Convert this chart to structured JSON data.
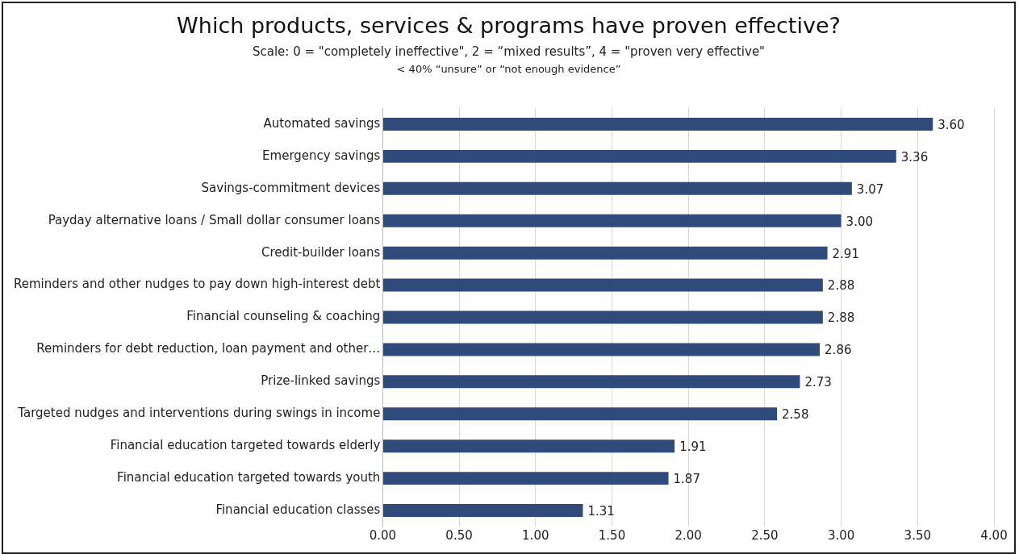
{
  "chart_data": {
    "type": "bar",
    "orientation": "horizontal",
    "title": "Which products, services & programs have proven effective?",
    "subtitle": "Scale: 0 = \"completely ineffective\", 2 = “mixed results”, 4 = \"proven very effective\"",
    "annotations": [
      "< 40% “unsure” or “not enough evidence”"
    ],
    "categories": [
      "Automated savings",
      "Emergency savings",
      "Savings-commitment devices",
      "Payday alternative loans / Small dollar consumer loans",
      "Credit-builder loans",
      "Reminders and other nudges to pay down high-interest debt",
      "Financial counseling & coaching",
      "Reminders for debt reduction, loan payment and other…",
      "Prize-linked savings",
      "Targeted nudges and interventions during swings in income",
      "Financial education targeted towards elderly",
      "Financial education targeted towards youth",
      "Financial education classes"
    ],
    "values": [
      3.6,
      3.36,
      3.07,
      3.0,
      2.91,
      2.88,
      2.88,
      2.86,
      2.73,
      2.58,
      1.91,
      1.87,
      1.31
    ],
    "value_labels": [
      "3.60",
      "3.36",
      "3.07",
      "3.00",
      "2.91",
      "2.88",
      "2.88",
      "2.86",
      "2.73",
      "2.58",
      "1.91",
      "1.87",
      "1.31"
    ],
    "color": "#2f4b7c",
    "grid": "x",
    "legend": false,
    "xlim": [
      0,
      4
    ],
    "xticks": [
      {
        "value": 0,
        "label": "0.00"
      },
      {
        "value": 0.5,
        "label": "0.50"
      },
      {
        "value": 1,
        "label": "1.00"
      },
      {
        "value": 1.5,
        "label": "1.50"
      },
      {
        "value": 2,
        "label": "2.00"
      },
      {
        "value": 2.5,
        "label": "2.50"
      },
      {
        "value": 3,
        "label": "3.00"
      },
      {
        "value": 3.5,
        "label": "3.50"
      },
      {
        "value": 4,
        "label": "4.00"
      }
    ]
  }
}
